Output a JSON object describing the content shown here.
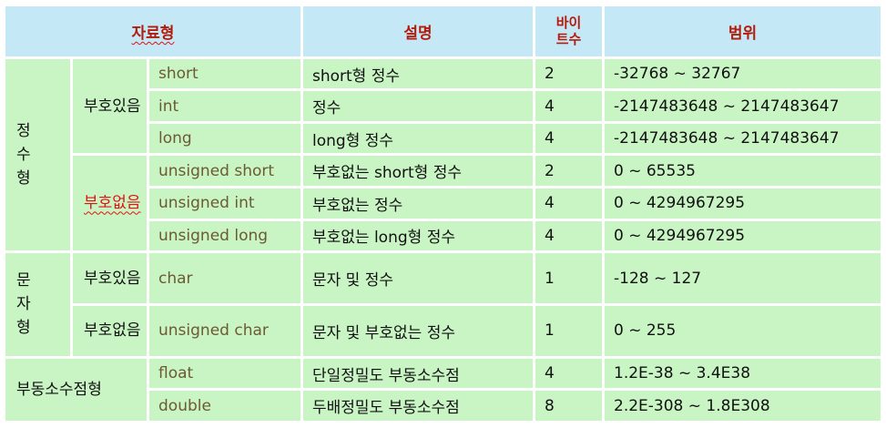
{
  "header": {
    "type": "자료형",
    "desc": "설명",
    "bytes_l1": "바이",
    "bytes_l2": "트수",
    "range": "범위"
  },
  "groups": {
    "integer_l1": "정 수",
    "integer_l2": "형",
    "signed": "부호있음",
    "unsigned": "부호없음",
    "char_l1": "문 자",
    "char_l2": "형",
    "char_signed": "부호있음",
    "char_unsigned": "부호없음",
    "float_group": "부동소수점형"
  },
  "rows": [
    {
      "type": "short",
      "desc": "short형 정수",
      "bytes": "2",
      "range": "-32768 ~ 32767"
    },
    {
      "type": "int",
      "desc": "정수",
      "bytes": "4",
      "range": "-2147483648 ~ 2147483647"
    },
    {
      "type": "long",
      "desc": "long형 정수",
      "bytes": "4",
      "range": "-2147483648 ~ 2147483647"
    },
    {
      "type": "unsigned short",
      "desc": "부호없는 short형 정수",
      "bytes": "2",
      "range": "0 ~ 65535"
    },
    {
      "type": "unsigned int",
      "desc": "부호없는 정수",
      "bytes": "4",
      "range": "0 ~ 4294967295"
    },
    {
      "type": "unsigned long",
      "desc": "부호없는 long형 정수",
      "bytes": "4",
      "range": "0 ~ 4294967295"
    },
    {
      "type": "char",
      "desc": "문자 및 정수",
      "bytes": "1",
      "range": "-128 ~ 127"
    },
    {
      "type": "unsigned char",
      "desc": "문자 및 부호없는 정수",
      "bytes": "1",
      "range": "0 ~ 255"
    },
    {
      "type": "float",
      "desc": "단일정밀도 부동소수점",
      "bytes": "4",
      "range": "1.2E-38 ~ 3.4E38"
    },
    {
      "type": "double",
      "desc": "두배정밀도 부동소수점",
      "bytes": "8",
      "range": "2.2E-308 ~ 1.8E308"
    }
  ],
  "colors": {
    "header_bg": "#c5e8f6",
    "header_text": "#b31b0b",
    "cell_bg": "#c9f5c4",
    "type_text": "#6c5a34",
    "highlight": "#e01212"
  }
}
